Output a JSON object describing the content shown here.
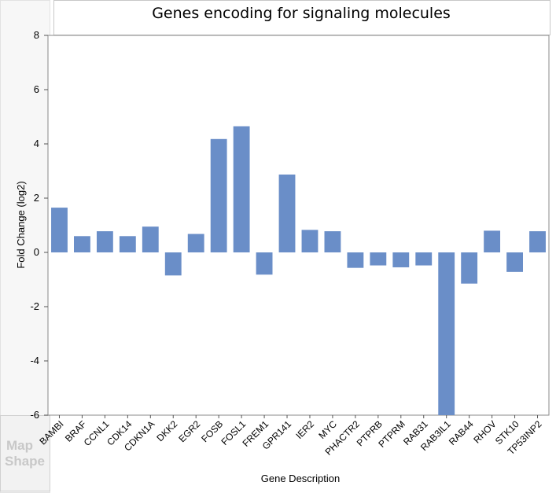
{
  "chart_data": {
    "type": "bar",
    "title": "Genes encoding for signaling molecules",
    "xlabel": "Gene Description",
    "ylabel": "Fold Change (log2)",
    "ylim": [
      -6,
      8
    ],
    "yticks": [
      -6,
      -4,
      -2,
      0,
      2,
      4,
      6,
      8
    ],
    "grid": false,
    "legend": "none",
    "categories": [
      "BAMBI",
      "BRAF",
      "CCNL1",
      "CDK14",
      "CDKN1A",
      "DKK2",
      "EGR2",
      "FOSB",
      "FOSL1",
      "FREM1",
      "GPR141",
      "IER2",
      "MYC",
      "PHACTR2",
      "PTPRB",
      "PTPRM",
      "RAB31",
      "RAB3IL1",
      "RAB44",
      "RHOV",
      "STK10",
      "TP53INP2"
    ],
    "values": [
      1.65,
      0.6,
      0.78,
      0.6,
      0.95,
      -0.85,
      0.68,
      4.18,
      4.65,
      -0.82,
      2.87,
      0.83,
      0.78,
      -0.57,
      -0.48,
      -0.55,
      -0.48,
      -6.0,
      -1.15,
      0.8,
      -0.72,
      0.78
    ],
    "bar_color": "#6a8ec8"
  },
  "ghost_panel": {
    "line1": "Map",
    "line2": "Shape"
  }
}
